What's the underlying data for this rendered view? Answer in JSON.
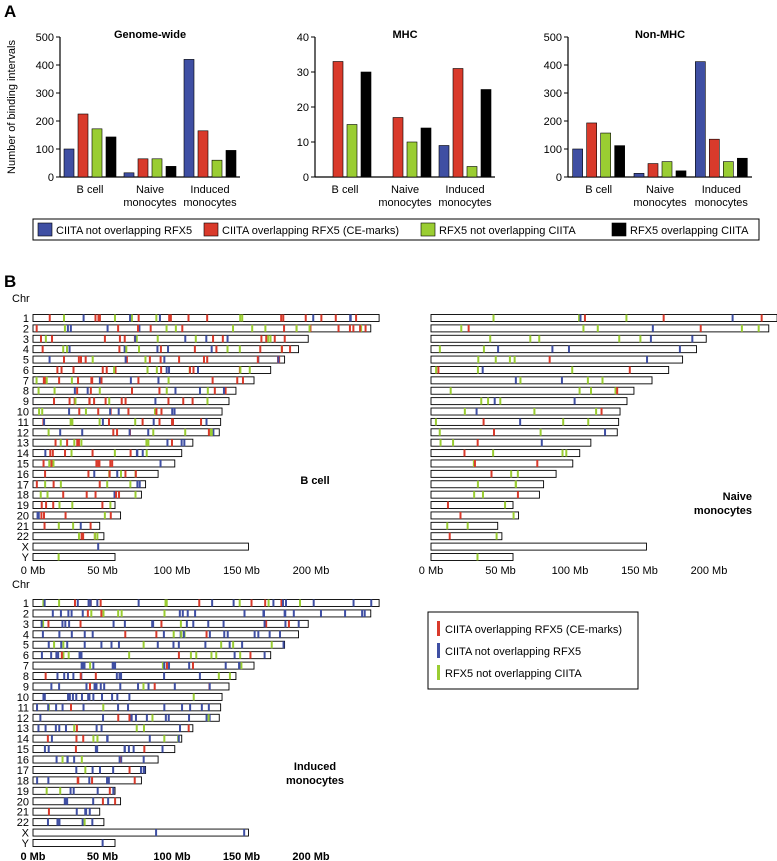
{
  "panel_labels": {
    "a": "A",
    "b": "B"
  },
  "colors": {
    "ciita_only": "#3f4fa3",
    "ce_marks": "#d93a2b",
    "rfx5_only": "#9acd32",
    "rfx5_overlap": "#000000"
  },
  "chart_data": [
    {
      "type": "bar",
      "title": "Genome-wide",
      "ylabel": "Number of binding intervals",
      "ylim": [
        0,
        500
      ],
      "yticks": [
        0,
        100,
        200,
        300,
        400,
        500
      ],
      "categories": [
        "B cell",
        "Naive\nmonocytes",
        "Induced\nmonocytes"
      ],
      "series": [
        {
          "name": "CIITA not overlapping RFX5",
          "values": [
            100,
            15,
            420
          ]
        },
        {
          "name": "CIITA overlapping RFX5 (CE-marks)",
          "values": [
            225,
            65,
            165
          ]
        },
        {
          "name": "RFX5 not overlapping CIITA",
          "values": [
            172,
            65,
            60
          ]
        },
        {
          "name": "RFX5 overlapping CIITA",
          "values": [
            143,
            38,
            95
          ]
        }
      ]
    },
    {
      "type": "bar",
      "title": "MHC",
      "ylim": [
        0,
        40
      ],
      "yticks": [
        0,
        10,
        20,
        30,
        40
      ],
      "categories": [
        "B cell",
        "Naive\nmonocytes",
        "Induced\nmonocytes"
      ],
      "series": [
        {
          "name": "CIITA not overlapping RFX5",
          "values": [
            0,
            0,
            9
          ]
        },
        {
          "name": "CIITA overlapping RFX5 (CE-marks)",
          "values": [
            33,
            17,
            31
          ]
        },
        {
          "name": "RFX5 not overlapping CIITA",
          "values": [
            15,
            10,
            3
          ]
        },
        {
          "name": "RFX5 overlapping CIITA",
          "values": [
            30,
            14,
            25
          ]
        }
      ]
    },
    {
      "type": "bar",
      "title": "Non-MHC",
      "ylim": [
        0,
        500
      ],
      "yticks": [
        0,
        100,
        200,
        300,
        400,
        500
      ],
      "categories": [
        "B cell",
        "Naive\nmonocytes",
        "Induced\nmonocytes"
      ],
      "series": [
        {
          "name": "CIITA not overlapping RFX5",
          "values": [
            100,
            13,
            412
          ]
        },
        {
          "name": "CIITA overlapping RFX5 (CE-marks)",
          "values": [
            193,
            48,
            135
          ]
        },
        {
          "name": "RFX5 not overlapping CIITA",
          "values": [
            157,
            55,
            55
          ]
        },
        {
          "name": "RFX5 overlapping CIITA",
          "values": [
            112,
            22,
            67
          ]
        }
      ]
    }
  ],
  "legend_a": [
    "CIITA not overlapping RFX5",
    "CIITA overlapping RFX5 (CE-marks)",
    "RFX5 not overlapping CIITA",
    "RFX5 overlapping CIITA"
  ],
  "ideogram": {
    "chr_label": "Chr",
    "chromosomes": [
      "1",
      "2",
      "3",
      "4",
      "5",
      "6",
      "7",
      "8",
      "9",
      "10",
      "11",
      "12",
      "13",
      "14",
      "15",
      "16",
      "17",
      "18",
      "19",
      "20",
      "21",
      "22",
      "X",
      "Y"
    ],
    "lengths_mb": [
      249,
      243,
      198,
      191,
      181,
      171,
      159,
      146,
      141,
      136,
      135,
      134,
      115,
      107,
      102,
      90,
      81,
      78,
      59,
      63,
      48,
      51,
      155,
      59
    ],
    "xaxis_ticks": [
      "0 Mb",
      "50 Mb",
      "100 Mb",
      "150 Mb",
      "200 Mb"
    ],
    "xaxis_values": [
      0,
      50,
      100,
      150,
      200
    ],
    "panels": [
      {
        "label": "B cell",
        "mode": "bcell"
      },
      {
        "label": "Naive\nmonocytes",
        "mode": "naive"
      },
      {
        "label": "Induced\nmonocytes",
        "mode": "induced"
      }
    ]
  },
  "legend_b": [
    "CIITA overlapping RFX5 (CE-marks)",
    "CIITA not overlapping RFX5",
    "RFX5 not overlapping CIITA"
  ]
}
